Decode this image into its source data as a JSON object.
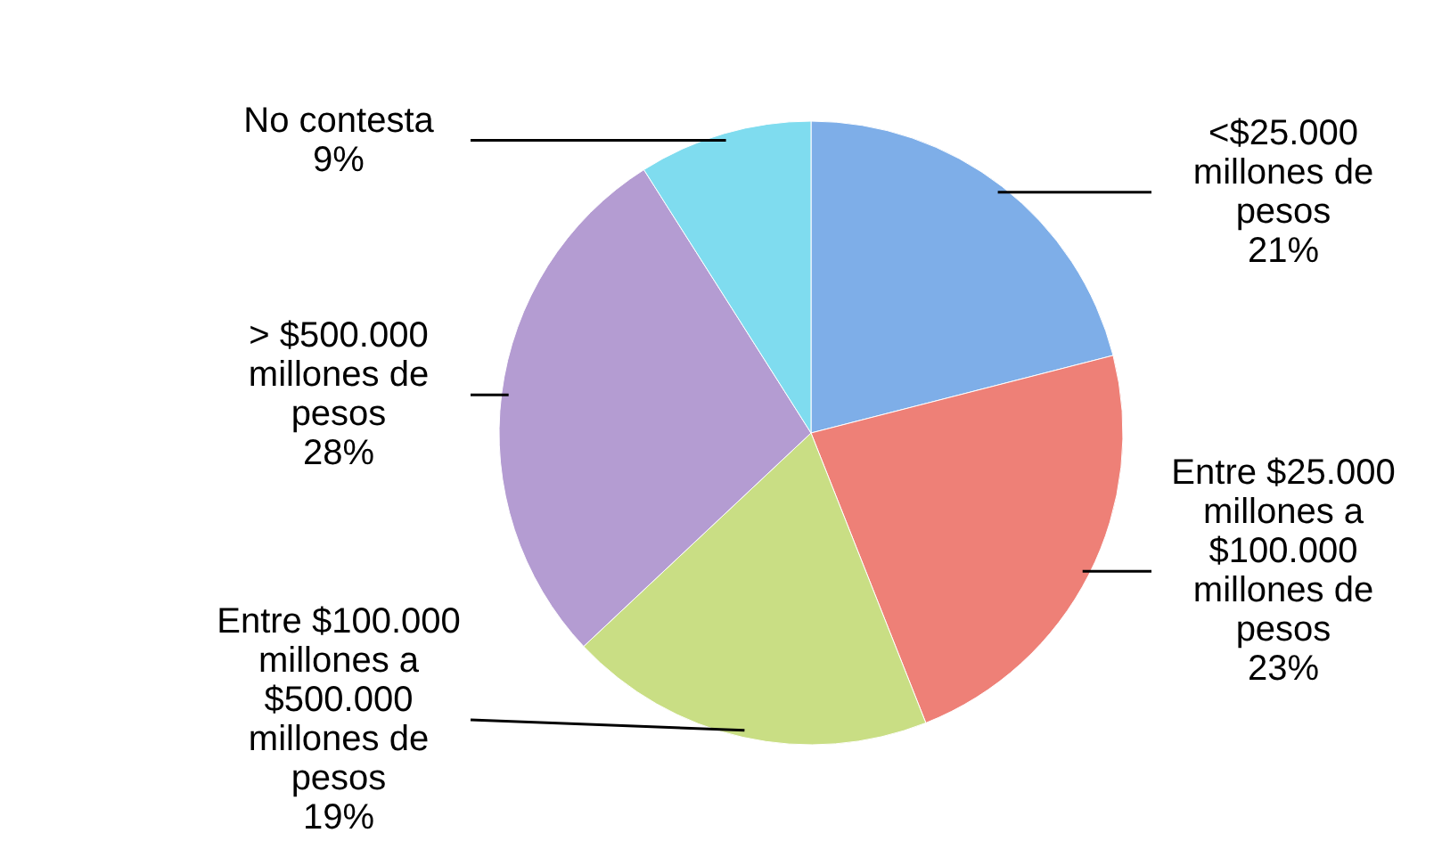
{
  "chart_data": {
    "type": "pie",
    "categories": [
      "<$25.000 millones de pesos",
      "Entre $25.000 millones a $100.000 millones de pesos",
      "Entre $100.000 millones a $500.000 millones de pesos",
      "> $500.000 millones de pesos",
      "No contesta"
    ],
    "values": [
      21,
      23,
      19,
      28,
      9
    ],
    "value_labels": [
      "21%",
      "23%",
      "19%",
      "28%",
      "9%"
    ],
    "colors": [
      "#7eaee8",
      "#ee8077",
      "#c9de84",
      "#b49cd2",
      "#7fdcef"
    ]
  }
}
